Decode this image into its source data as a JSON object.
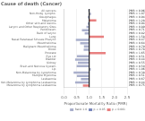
{
  "chart_data": {
    "type": "bar",
    "orientation": "horizontal",
    "title": "Cause of death (Cancer)",
    "xlabel": "Proportionate Mortality Ratio (PMR)",
    "categories": [
      "All cancers",
      "Non-Hodg. Lympho.",
      "Oesophagus",
      "Melanoma",
      "Other skin and lesions",
      "Larynx and Other Respiratory Sites",
      "Peritoneum",
      "Back of larynx",
      "Lung",
      "Nasal Paranasal Sinuses Pharynx",
      "Mesothelioma",
      "Malignant Mesothelioma",
      "Blood",
      "Prostate",
      "Eye Lid",
      "Bladder",
      "Kidney",
      "Brain and Nervous System",
      "Lip",
      "Non-Melanoma by Lymphoma",
      "Multiple Myeloma",
      "Leukaemia",
      "All Non-Melanoma by Lymphoma Leukaemia",
      "Melanoma by Lymphoma Leukaemia"
    ],
    "series": [
      {
        "name": "Ratio 1.0",
        "color": "#aab0cc",
        "values": [
          0.96,
          1.07,
          0.94,
          null,
          0.94,
          0.89,
          0.71,
          0.82,
          null,
          0.47,
          0.64,
          0.79,
          0.78,
          null,
          0.51,
          0.44,
          0.55,
          0.5,
          1.06,
          0.38,
          0.51,
          0.67,
          0.44,
          null
        ],
        "value_labels": [
          "PMR = 0.96",
          "PMR = 1.07",
          "PMR = 0.94",
          null,
          "PMR = 0.94",
          "PMR = 0.89",
          "PMR = 0.71",
          "PMR = 0.82",
          null,
          "PMR = 0.47",
          "PMR = 0.64",
          "PMR = 0.79",
          "PMR = 0.78",
          null,
          "PMR = 0.51",
          "PMR = 0.44",
          "PMR = 0.55",
          "PMR = 0.50",
          "PMR = 1.06",
          "PMR = 0.38",
          "PMR = 0.51",
          "PMR = 0.67",
          "PMR = 0.44",
          null
        ]
      },
      {
        "name": "p < 0.05",
        "color": "#7a88bb",
        "values": [
          null,
          null,
          null,
          null,
          null,
          null,
          null,
          null,
          null,
          null,
          null,
          null,
          null,
          null,
          null,
          null,
          null,
          null,
          null,
          null,
          null,
          null,
          null,
          null
        ],
        "value_labels": [
          null,
          null,
          null,
          null,
          null,
          null,
          null,
          null,
          null,
          null,
          null,
          null,
          null,
          null,
          null,
          null,
          null,
          null,
          null,
          null,
          null,
          null,
          null,
          null
        ]
      },
      {
        "name": "p < 0.001",
        "color": "#e88080",
        "values": [
          null,
          null,
          null,
          1.28,
          null,
          null,
          null,
          null,
          1.58,
          null,
          null,
          null,
          null,
          1.65,
          null,
          null,
          null,
          null,
          null,
          null,
          null,
          null,
          null,
          0.75
        ],
        "value_labels": [
          null,
          null,
          null,
          "PMR = 1.28",
          null,
          null,
          null,
          null,
          "PMR = 1.58",
          null,
          null,
          null,
          null,
          "PMR = 1.65",
          null,
          null,
          null,
          null,
          null,
          null,
          null,
          null,
          null,
          "PMR = 0.75"
        ]
      }
    ],
    "baseline": 1.0,
    "xlim": [
      0.0,
      2.5
    ],
    "xticks": [
      {
        "value": 0,
        "label": "0.0"
      },
      0.5,
      {
        "value": 1,
        "label": "1.0"
      },
      1.5,
      {
        "value": 2,
        "label": "2.0"
      },
      2.5
    ],
    "grid": true,
    "legend": "lower right",
    "data_labels": true
  }
}
